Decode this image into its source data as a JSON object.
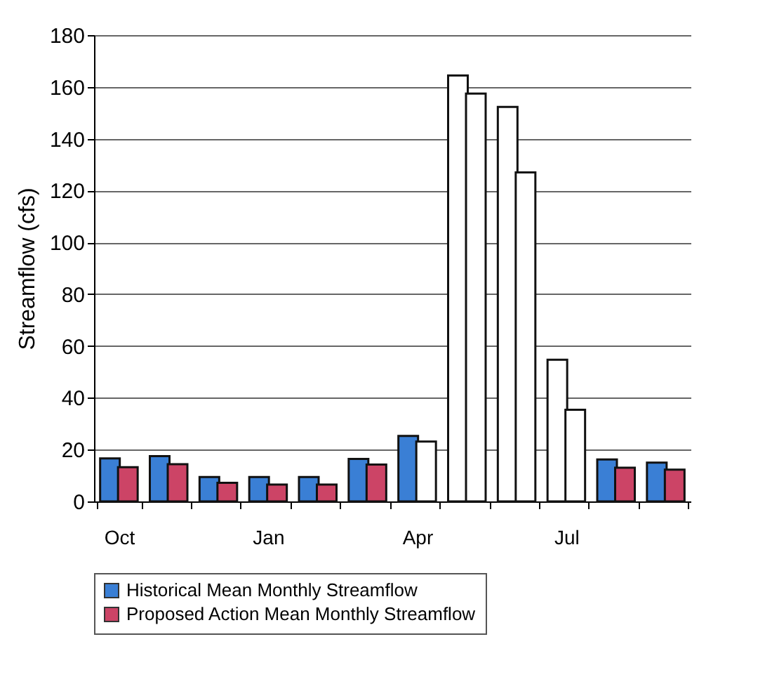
{
  "chart_data": {
    "type": "bar",
    "ylabel": "Streamflow  (cfs)",
    "categories": [
      "Oct",
      null,
      null,
      "Jan",
      null,
      null,
      "Apr",
      null,
      null,
      "Jul",
      null,
      null
    ],
    "series": [
      {
        "name": "Historical Mean Monthly Streamflow",
        "color": "#3a7fd5",
        "colors": [
          "#3a7fd5",
          "#3a7fd5",
          "#3a7fd5",
          "#3a7fd5",
          "#3a7fd5",
          "#3a7fd5",
          "#3a7fd5",
          "#ffffff",
          "#ffffff",
          "#ffffff",
          "#3a7fd5",
          "#3a7fd5"
        ],
        "values": [
          16.6,
          17.5,
          9.4,
          9.4,
          9.4,
          16.4,
          25.3,
          164.4,
          152.3,
          54.7,
          16.2,
          15
        ]
      },
      {
        "name": "Proposed Action Mean Monthly Streamflow",
        "color": "#cc4466",
        "colors": [
          "#cc4466",
          "#cc4466",
          "#cc4466",
          "#cc4466",
          "#cc4466",
          "#cc4466",
          "#ffffff",
          "#ffffff",
          "#ffffff",
          "#ffffff",
          "#cc4466",
          "#cc4466"
        ],
        "values": [
          13.2,
          14.4,
          7.2,
          6.5,
          6.5,
          14.2,
          23.1,
          157.4,
          127,
          35.4,
          13,
          12.3
        ]
      }
    ],
    "ylim": [
      0,
      180
    ],
    "yticks": [
      0,
      20,
      40,
      60,
      80,
      100,
      120,
      140,
      160,
      180
    ],
    "grid": "y",
    "legend": "bottom"
  }
}
